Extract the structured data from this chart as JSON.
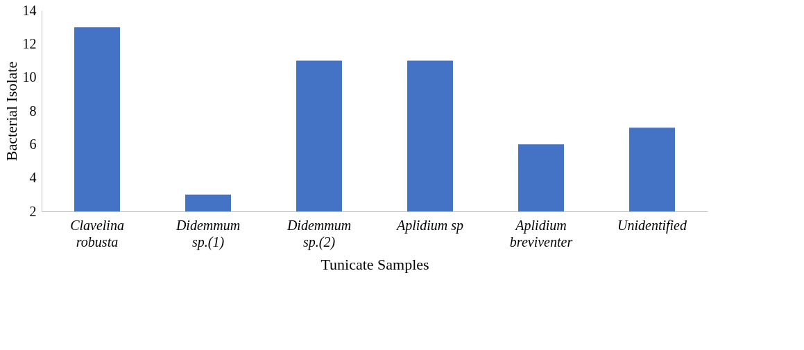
{
  "chart_data": {
    "type": "bar",
    "xlabel": "Tunicate Samples",
    "ylabel": "Bacterial Isolate",
    "categories": [
      "Clavelina robusta",
      "Didemmum sp.(1)",
      "Didemmum sp.(2)",
      "Aplidium sp",
      "Aplidium breviventer",
      "Unidentified"
    ],
    "values": [
      13,
      3,
      11,
      11,
      6,
      7
    ],
    "color": "#4472c4",
    "ylim": [
      2,
      14
    ],
    "yticks": [
      2,
      4,
      6,
      8,
      10,
      12,
      14
    ],
    "grid": false
  }
}
